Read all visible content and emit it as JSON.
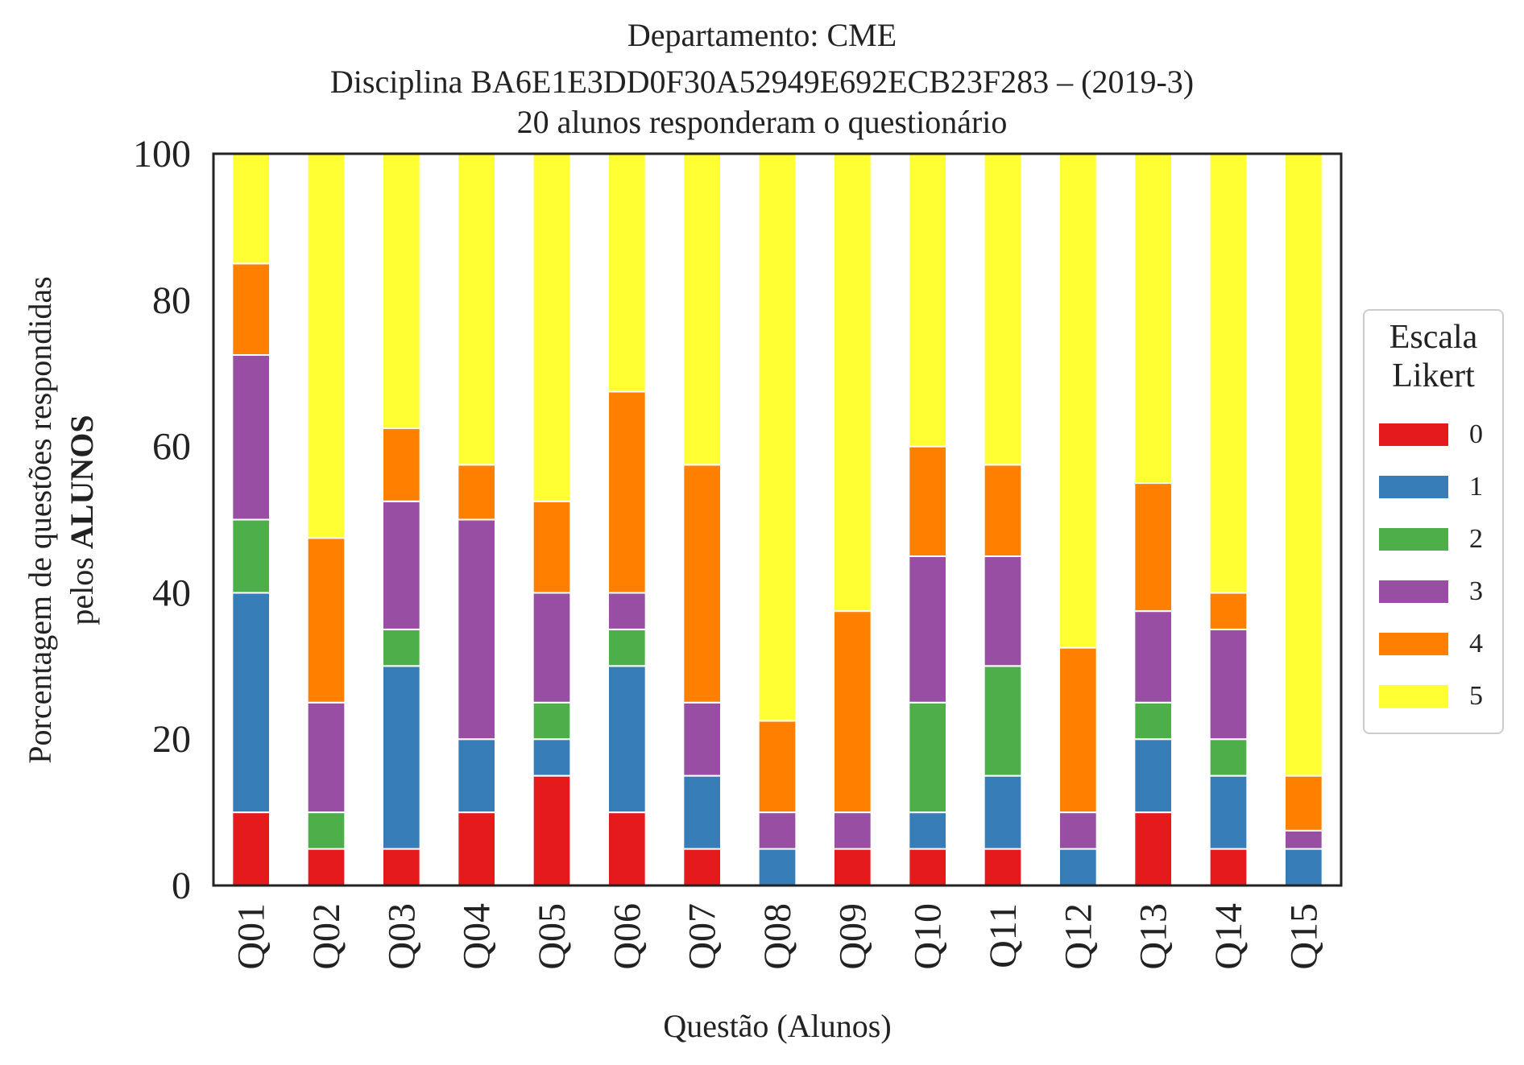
{
  "chart_data": {
    "type": "bar",
    "stacked": true,
    "title_lines": [
      "Departamento: CME",
      "Disciplina BA6E1E3DD0F30A52949E692ECB23F283 – (2019-3)",
      "20 alunos responderam o questionário"
    ],
    "xlabel": "Questão (Alunos)",
    "ylabel_line1": "Porcentagem de questões respondidas",
    "ylabel_line2_prefix": "pelos ",
    "ylabel_line2_bold": "ALUNOS",
    "ylim": [
      0,
      100
    ],
    "yticks": [
      "0",
      "20",
      "40",
      "60",
      "80",
      "100"
    ],
    "grid": false,
    "legend": {
      "title_line1": "Escala",
      "title_line2": "Likert",
      "placement": "right"
    },
    "categories": [
      "Q01",
      "Q02",
      "Q03",
      "Q04",
      "Q05",
      "Q06",
      "Q07",
      "Q08",
      "Q09",
      "Q10",
      "Q11",
      "Q12",
      "Q13",
      "Q14",
      "Q15"
    ],
    "series": [
      {
        "name": "0",
        "color": "#e41a1c",
        "values": [
          10,
          5,
          5,
          10,
          15,
          10,
          5,
          0,
          5,
          5,
          5,
          0,
          10,
          5,
          0
        ]
      },
      {
        "name": "1",
        "color": "#377eb8",
        "values": [
          30,
          0,
          25,
          10,
          5,
          20,
          10,
          5,
          0,
          5,
          10,
          5,
          10,
          10,
          5
        ]
      },
      {
        "name": "2",
        "color": "#4daf4a",
        "values": [
          10,
          5,
          5,
          0,
          5,
          5,
          0,
          0,
          0,
          15,
          15,
          0,
          5,
          5,
          0
        ]
      },
      {
        "name": "3",
        "color": "#984ea3",
        "values": [
          22.5,
          15,
          17.5,
          30,
          15,
          5,
          10,
          5,
          5,
          20,
          15,
          5,
          12.5,
          15,
          2.5
        ]
      },
      {
        "name": "4",
        "color": "#ff7f00",
        "values": [
          12.5,
          22.5,
          10,
          7.5,
          12.5,
          27.5,
          32.5,
          12.5,
          27.5,
          15,
          12.5,
          22.5,
          17.5,
          5,
          7.5
        ]
      },
      {
        "name": "5",
        "color": "#ffff33",
        "values": [
          15,
          52.5,
          37.5,
          42.5,
          47.5,
          32.5,
          42.5,
          77.5,
          62.5,
          40,
          42.5,
          67.5,
          45,
          60,
          85
        ]
      }
    ]
  }
}
